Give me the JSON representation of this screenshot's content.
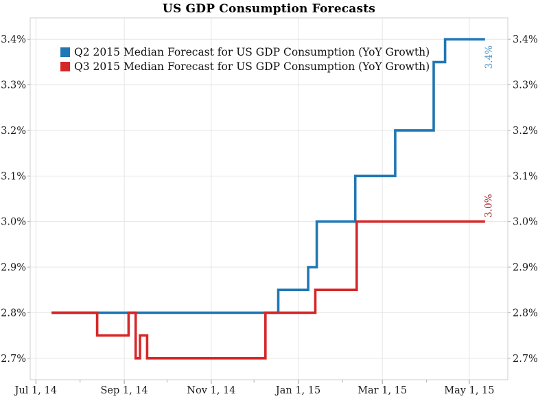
{
  "title": "US GDP Consumption Forecasts",
  "legend": {
    "items": [
      {
        "label": "Q2 2015 Median Forecast for US GDP Consumption (YoY Growth)",
        "series": "q2"
      },
      {
        "label": "Q3 2015 Median Forecast for US GDP Consumption (YoY Growth)",
        "series": "q3"
      }
    ]
  },
  "colors": {
    "q2_line": "#2077b4",
    "q3_line": "#d62728",
    "q2_end_label": "#4f94c8",
    "q3_end_label": "#a53030",
    "grid": "#e5e5e5",
    "border": "#cccccc",
    "tick": "#aaaaaa",
    "tick_text": "#1c1c1c"
  },
  "chart_data": {
    "type": "line",
    "step": "after",
    "title": "US GDP Consumption Forecasts",
    "xlabel": "",
    "ylabel": "",
    "grid": true,
    "legend_position": "top-left-inside",
    "x_axis": {
      "range": [
        "2014-06-27",
        "2015-05-28"
      ],
      "ticks": [
        {
          "date": "2014-07-01",
          "label": "Jul 1, 14"
        },
        {
          "date": "2014-09-01",
          "label": "Sep 1, 14"
        },
        {
          "date": "2014-11-01",
          "label": "Nov 1, 14"
        },
        {
          "date": "2015-01-01",
          "label": "Jan 1, 15"
        },
        {
          "date": "2015-03-01",
          "label": "Mar 1, 15"
        },
        {
          "date": "2015-05-01",
          "label": "May 1, 15"
        }
      ],
      "minor_tick_interval": "month"
    },
    "y_axis": {
      "range": [
        2.653,
        3.447
      ],
      "ticks": [
        {
          "value": 2.7,
          "label": "2.7%"
        },
        {
          "value": 2.8,
          "label": "2.8%"
        },
        {
          "value": 2.9,
          "label": "2.9%"
        },
        {
          "value": 3.0,
          "label": "3.0%"
        },
        {
          "value": 3.1,
          "label": "3.1%"
        },
        {
          "value": 3.2,
          "label": "3.2%"
        },
        {
          "value": 3.3,
          "label": "3.3%"
        },
        {
          "value": 3.4,
          "label": "3.4%"
        }
      ],
      "labels_on_both_sides": true
    },
    "series": [
      {
        "id": "q2",
        "name": "Q2 2015 Median Forecast for US GDP Consumption (YoY Growth)",
        "color": "#2077b4",
        "end_label": "3.4%",
        "end_label_color": "#4f94c8",
        "end_label_side": "below",
        "points": [
          [
            "2014-07-12",
            2.8
          ],
          [
            "2014-12-18",
            2.85
          ],
          [
            "2015-01-08",
            2.9
          ],
          [
            "2015-01-14",
            3.0
          ],
          [
            "2015-02-10",
            3.1
          ],
          [
            "2015-03-10",
            3.2
          ],
          [
            "2015-04-06",
            3.35
          ],
          [
            "2015-04-14",
            3.4
          ],
          [
            "2015-05-12",
            3.4
          ]
        ]
      },
      {
        "id": "q3",
        "name": "Q3 2015 Median Forecast for US GDP Consumption (YoY Growth)",
        "color": "#d62728",
        "end_label": "3.0%",
        "end_label_color": "#a53030",
        "end_label_side": "above",
        "points": [
          [
            "2014-07-12",
            2.8
          ],
          [
            "2014-08-13",
            2.75
          ],
          [
            "2014-09-04",
            2.8
          ],
          [
            "2014-09-09",
            2.7
          ],
          [
            "2014-09-12",
            2.75
          ],
          [
            "2014-09-17",
            2.7
          ],
          [
            "2014-12-09",
            2.8
          ],
          [
            "2015-01-13",
            2.85
          ],
          [
            "2015-02-11",
            3.0
          ],
          [
            "2015-05-12",
            3.0
          ]
        ]
      }
    ]
  }
}
